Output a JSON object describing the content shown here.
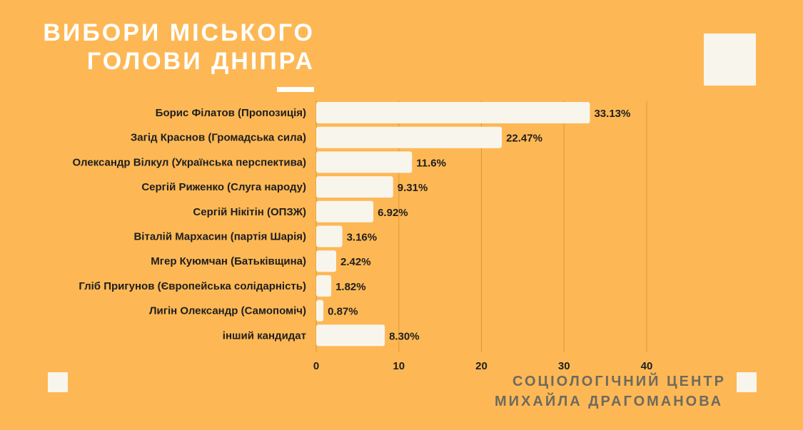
{
  "title": {
    "line1": "ВИБОРИ МІСЬКОГО",
    "line2": "ГОЛОВИ ДНІПРА"
  },
  "footer": {
    "line1": "СОЦІОЛОГІЧНИЙ ЦЕНТР",
    "line2": "МИХАЙЛА ДРАГОМАНОВА"
  },
  "colors": {
    "background": "#FDB855",
    "bar": "#F8F5EC",
    "gridline": "#E0982F",
    "text": "#1E1E1E"
  },
  "chart_data": {
    "type": "bar",
    "orientation": "horizontal",
    "categories": [
      "Борис Філатов (Пропозиція)",
      "Загід Краснов (Громадська сила)",
      "Олександр Вілкул (Українська перспектива)",
      "Сергій Риженко (Слуга народу)",
      "Сергій Нікітін (ОПЗЖ)",
      "Віталій Мархасин (партія Шарія)",
      "Мгер Куюмчан (Батьківщина)",
      "Гліб Пригунов (Європейська солідарність)",
      "Лигін Олександр (Самопоміч)",
      "інший кандидат"
    ],
    "values": [
      33.13,
      22.47,
      11.6,
      9.31,
      6.92,
      3.16,
      2.42,
      1.82,
      0.87,
      8.3
    ],
    "value_labels": [
      "33.13%",
      "22.47%",
      "11.6%",
      "9.31%",
      "6.92%",
      "3.16%",
      "2.42%",
      "1.82%",
      "0.87%",
      "8.30%"
    ],
    "xlim": [
      0,
      40
    ],
    "xticks": [
      0,
      10,
      20,
      30,
      40
    ],
    "grid": "vertical",
    "legend": "none"
  }
}
